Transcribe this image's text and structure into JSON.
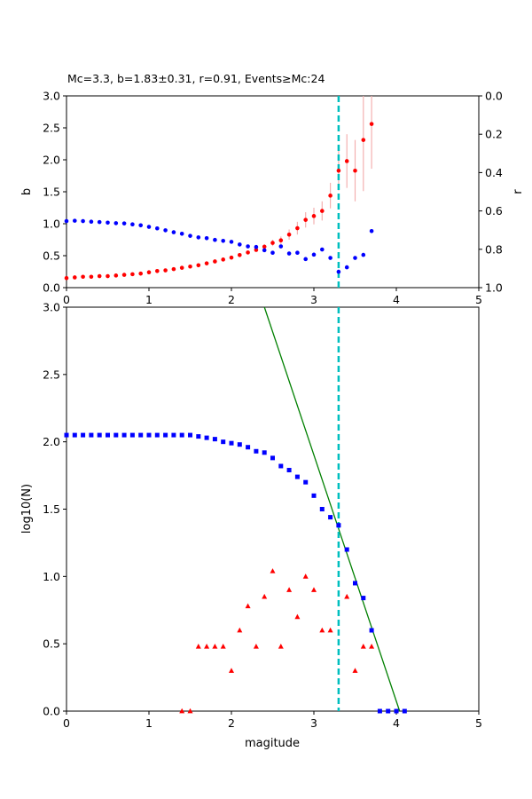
{
  "title": "Mc=3.3, b=1.83±0.31, r=0.91, Events≥Mc:24",
  "colors": {
    "b_series": "#ff0000",
    "r_series": "#0000ff",
    "error_bars": "#f4b0b0",
    "mc_line": "#00bfbf",
    "fit_line": "#008000",
    "cumulative": "#0000ff",
    "noncumulative": "#ff0000"
  },
  "chart_data": [
    {
      "type": "scatter",
      "title": "Mc=3.3, b=1.83±0.31, r=0.91, Events≥Mc:24",
      "xlabel": "",
      "ylabel": "b",
      "y2label": "r",
      "xlim": [
        0,
        5
      ],
      "ylim": [
        0,
        3
      ],
      "y2lim": [
        1,
        0
      ],
      "x_ticks": [
        "0",
        "1",
        "2",
        "3",
        "4",
        "5"
      ],
      "y_ticks": [
        "0.0",
        "0.5",
        "1.0",
        "1.5",
        "2.0",
        "2.5",
        "3.0"
      ],
      "y2_ticks": [
        "0.0",
        "0.2",
        "0.4",
        "0.6",
        "0.8",
        "1.0"
      ],
      "vline_x": 3.3,
      "series": [
        {
          "axis": "left",
          "x": [
            0.0,
            0.1,
            0.2,
            0.3,
            0.4,
            0.5,
            0.6,
            0.7,
            0.8,
            0.9,
            1.0,
            1.1,
            1.2,
            1.3,
            1.4,
            1.5,
            1.6,
            1.7,
            1.8,
            1.9,
            2.0,
            2.1,
            2.2,
            2.3,
            2.4,
            2.5,
            2.6,
            2.7,
            2.8,
            2.9,
            3.0,
            3.1,
            3.2,
            3.3,
            3.4,
            3.5,
            3.6,
            3.7
          ],
          "y": [
            0.15,
            0.16,
            0.17,
            0.17,
            0.18,
            0.18,
            0.19,
            0.2,
            0.21,
            0.22,
            0.24,
            0.26,
            0.27,
            0.29,
            0.31,
            0.33,
            0.35,
            0.38,
            0.41,
            0.44,
            0.47,
            0.51,
            0.55,
            0.59,
            0.64,
            0.7,
            0.74,
            0.83,
            0.93,
            1.06,
            1.12,
            1.2,
            1.44,
            1.83,
            1.98,
            1.83,
            2.31,
            2.56
          ],
          "err": [
            0.01,
            0.01,
            0.01,
            0.01,
            0.01,
            0.01,
            0.01,
            0.01,
            0.01,
            0.01,
            0.01,
            0.01,
            0.01,
            0.01,
            0.01,
            0.01,
            0.01,
            0.01,
            0.02,
            0.02,
            0.02,
            0.02,
            0.03,
            0.03,
            0.04,
            0.05,
            0.06,
            0.08,
            0.1,
            0.12,
            0.13,
            0.15,
            0.2,
            0.31,
            0.42,
            0.48,
            0.8,
            0.7
          ]
        },
        {
          "axis": "right",
          "x": [
            0.0,
            0.1,
            0.2,
            0.3,
            0.4,
            0.5,
            0.6,
            0.7,
            0.8,
            0.9,
            1.0,
            1.1,
            1.2,
            1.3,
            1.4,
            1.5,
            1.6,
            1.7,
            1.8,
            1.9,
            2.0,
            2.1,
            2.2,
            2.3,
            2.4,
            2.5,
            2.6,
            2.7,
            2.8,
            2.9,
            3.0,
            3.1,
            3.2,
            3.3,
            3.4,
            3.5,
            3.6,
            3.7
          ],
          "y": [
            0.653,
            0.651,
            0.653,
            0.656,
            0.658,
            0.661,
            0.664,
            0.665,
            0.67,
            0.675,
            0.683,
            0.691,
            0.701,
            0.711,
            0.719,
            0.73,
            0.738,
            0.742,
            0.751,
            0.756,
            0.761,
            0.775,
            0.785,
            0.788,
            0.805,
            0.818,
            0.785,
            0.822,
            0.818,
            0.851,
            0.828,
            0.801,
            0.845,
            0.917,
            0.894,
            0.845,
            0.829,
            0.705
          ]
        }
      ]
    },
    {
      "type": "scatter",
      "title": "",
      "xlabel": "magitude",
      "ylabel": "log10(N)",
      "xlim": [
        0,
        5
      ],
      "ylim": [
        0,
        3
      ],
      "x_ticks": [
        "0",
        "1",
        "2",
        "3",
        "4",
        "5"
      ],
      "y_ticks": [
        "0.0",
        "0.5",
        "1.0",
        "1.5",
        "2.0",
        "2.5",
        "3.0"
      ],
      "vline_x": 3.3,
      "fit_line": {
        "x": [
          2.4,
          4.04
        ],
        "y": [
          3.0,
          0.0
        ]
      },
      "series": [
        {
          "marker": "square",
          "x": [
            0.0,
            0.1,
            0.2,
            0.3,
            0.4,
            0.5,
            0.6,
            0.7,
            0.8,
            0.9,
            1.0,
            1.1,
            1.2,
            1.3,
            1.4,
            1.5,
            1.6,
            1.7,
            1.8,
            1.9,
            2.0,
            2.1,
            2.2,
            2.3,
            2.4,
            2.5,
            2.6,
            2.7,
            2.8,
            2.9,
            3.0,
            3.1,
            3.2,
            3.3,
            3.4,
            3.5,
            3.6,
            3.7,
            3.8,
            3.9,
            4.0,
            4.1
          ],
          "y": [
            2.05,
            2.05,
            2.05,
            2.05,
            2.05,
            2.05,
            2.05,
            2.05,
            2.05,
            2.05,
            2.05,
            2.05,
            2.05,
            2.05,
            2.05,
            2.05,
            2.04,
            2.03,
            2.02,
            2.0,
            1.99,
            1.98,
            1.96,
            1.93,
            1.92,
            1.88,
            1.82,
            1.79,
            1.74,
            1.7,
            1.6,
            1.5,
            1.44,
            1.38,
            1.2,
            0.95,
            0.84,
            0.6,
            0.0,
            0.0,
            0.0,
            0.0
          ]
        },
        {
          "marker": "triangle",
          "x": [
            1.4,
            1.5,
            1.6,
            1.7,
            1.8,
            1.9,
            2.0,
            2.1,
            2.2,
            2.3,
            2.4,
            2.5,
            2.6,
            2.7,
            2.8,
            2.9,
            3.0,
            3.1,
            3.2,
            3.4,
            3.5,
            3.6,
            3.7
          ],
          "y": [
            0.0,
            0.0,
            0.48,
            0.48,
            0.48,
            0.48,
            0.3,
            0.6,
            0.78,
            0.48,
            0.85,
            1.04,
            0.48,
            0.9,
            0.7,
            1.0,
            0.9,
            0.6,
            0.6,
            0.85,
            0.3,
            0.48,
            0.48
          ]
        }
      ]
    }
  ]
}
